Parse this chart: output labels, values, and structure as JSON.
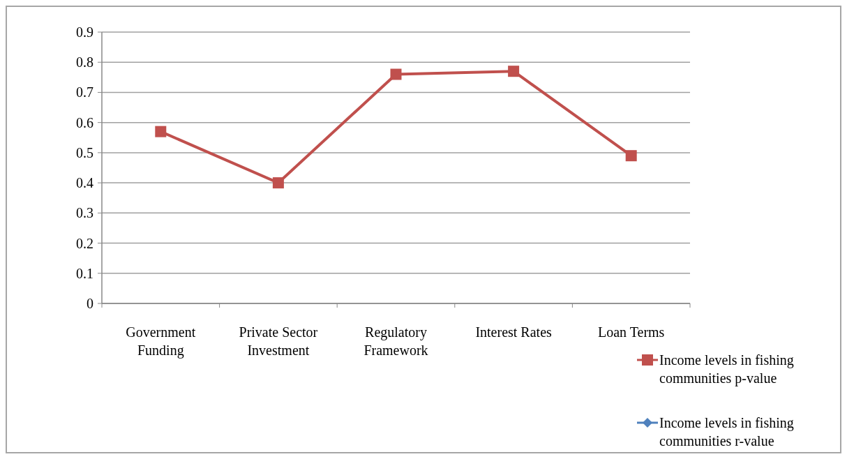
{
  "chart_data": {
    "type": "line",
    "categories": [
      "Government Funding",
      "Private Sector Investment",
      "Regulatory Framework",
      "Interest Rates",
      "Loan Terms"
    ],
    "series": [
      {
        "name": "Income levels in fishing communities p-value",
        "color": "#c0504d",
        "marker": "square",
        "values": [
          0.57,
          0.4,
          0.76,
          0.77,
          0.49
        ]
      },
      {
        "name": "Income levels in fishing communities r-value",
        "color": "#4f81bd",
        "marker": "diamond",
        "values": [
          null,
          null,
          null,
          null,
          null
        ]
      }
    ],
    "ylim": [
      0,
      0.9
    ],
    "yticks": [
      0,
      0.1,
      0.2,
      0.3,
      0.4,
      0.5,
      0.6,
      0.7,
      0.8,
      0.9
    ],
    "grid": "y",
    "legend": "bottom right"
  }
}
